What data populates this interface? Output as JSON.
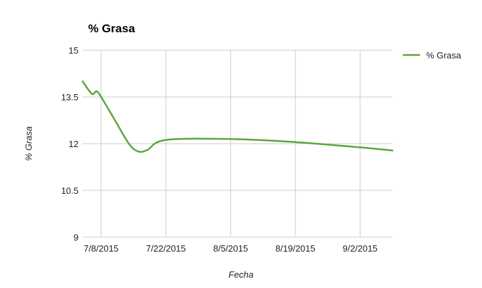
{
  "chart_data": {
    "type": "line",
    "title": "% Grasa",
    "xlabel": "Fecha",
    "ylabel": "% Grasa",
    "x_ticks": [
      "7/8/2015",
      "7/22/2015",
      "8/5/2015",
      "8/19/2015",
      "9/2/2015"
    ],
    "y_ticks": [
      "9",
      "10.5",
      "12",
      "13.5",
      "15"
    ],
    "ylim": [
      9,
      15
    ],
    "xlim": [
      "2015-07-04",
      "2015-09-09"
    ],
    "grid": true,
    "legend_position": "right",
    "series": [
      {
        "name": "% Grasa",
        "color": "#5aa53a",
        "points": [
          {
            "date": "2015-07-04",
            "value": 14.0
          },
          {
            "date": "2015-07-06",
            "value": 13.6
          },
          {
            "date": "2015-07-07",
            "value": 13.68
          },
          {
            "date": "2015-07-08",
            "value": 13.5
          },
          {
            "date": "2015-07-11",
            "value": 12.75
          },
          {
            "date": "2015-07-14",
            "value": 12.0
          },
          {
            "date": "2015-07-16",
            "value": 11.75
          },
          {
            "date": "2015-07-18",
            "value": 11.8
          },
          {
            "date": "2015-07-22",
            "value": 12.12
          },
          {
            "date": "2015-08-05",
            "value": 12.15
          },
          {
            "date": "2015-08-19",
            "value": 12.05
          },
          {
            "date": "2015-09-02",
            "value": 11.88
          },
          {
            "date": "2015-09-09",
            "value": 11.78
          }
        ]
      }
    ]
  }
}
